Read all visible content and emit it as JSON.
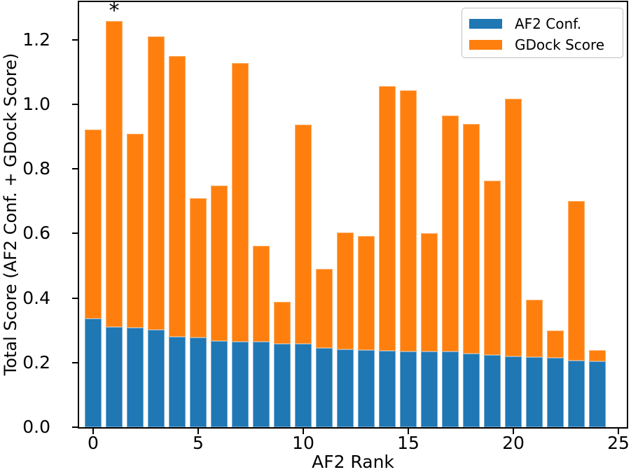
{
  "chart_data": {
    "type": "bar",
    "stacked": true,
    "title": "",
    "xlabel": "AF2 Rank",
    "ylabel": "Total Score (AF2 Conf. + GDock Score)",
    "x": [
      0,
      1,
      2,
      3,
      4,
      5,
      6,
      7,
      8,
      9,
      10,
      11,
      12,
      13,
      14,
      15,
      16,
      17,
      18,
      19,
      20,
      21,
      22,
      23,
      24
    ],
    "series": [
      {
        "name": "AF2 Conf.",
        "color": "#1f77b4",
        "values": [
          0.336,
          0.31,
          0.308,
          0.302,
          0.28,
          0.278,
          0.267,
          0.265,
          0.265,
          0.258,
          0.258,
          0.245,
          0.241,
          0.239,
          0.236,
          0.234,
          0.234,
          0.234,
          0.228,
          0.223,
          0.219,
          0.217,
          0.215,
          0.206,
          0.204
        ]
      },
      {
        "name": "GDock Score",
        "color": "#ff7f0e",
        "values": [
          0.586,
          0.948,
          0.601,
          0.908,
          0.87,
          0.431,
          0.481,
          0.863,
          0.297,
          0.13,
          0.679,
          0.245,
          0.362,
          0.353,
          0.821,
          0.809,
          0.367,
          0.731,
          0.711,
          0.541,
          0.798,
          0.178,
          0.084,
          0.495,
          0.035
        ]
      }
    ],
    "totals": [
      0.922,
      1.258,
      0.909,
      1.21,
      1.15,
      0.709,
      0.748,
      1.128,
      0.562,
      0.388,
      0.937,
      0.49,
      0.603,
      0.592,
      1.057,
      1.043,
      0.601,
      0.965,
      0.939,
      0.764,
      1.017,
      0.395,
      0.299,
      0.701,
      0.239
    ],
    "annotations": [
      {
        "text": "*",
        "bar_index": 1
      }
    ],
    "xticks": [
      0,
      5,
      10,
      15,
      20,
      25
    ],
    "ytick_labels": [
      "0.0",
      "0.2",
      "0.4",
      "0.6",
      "0.8",
      "1.0",
      "1.2"
    ],
    "xlim": [
      -0.67,
      25.4
    ],
    "ylim": [
      0,
      1.317
    ],
    "bar_width_units": 0.8,
    "grid": false,
    "legend_position": "upper right",
    "background": "#ffffff",
    "axis_color": "#000000"
  }
}
